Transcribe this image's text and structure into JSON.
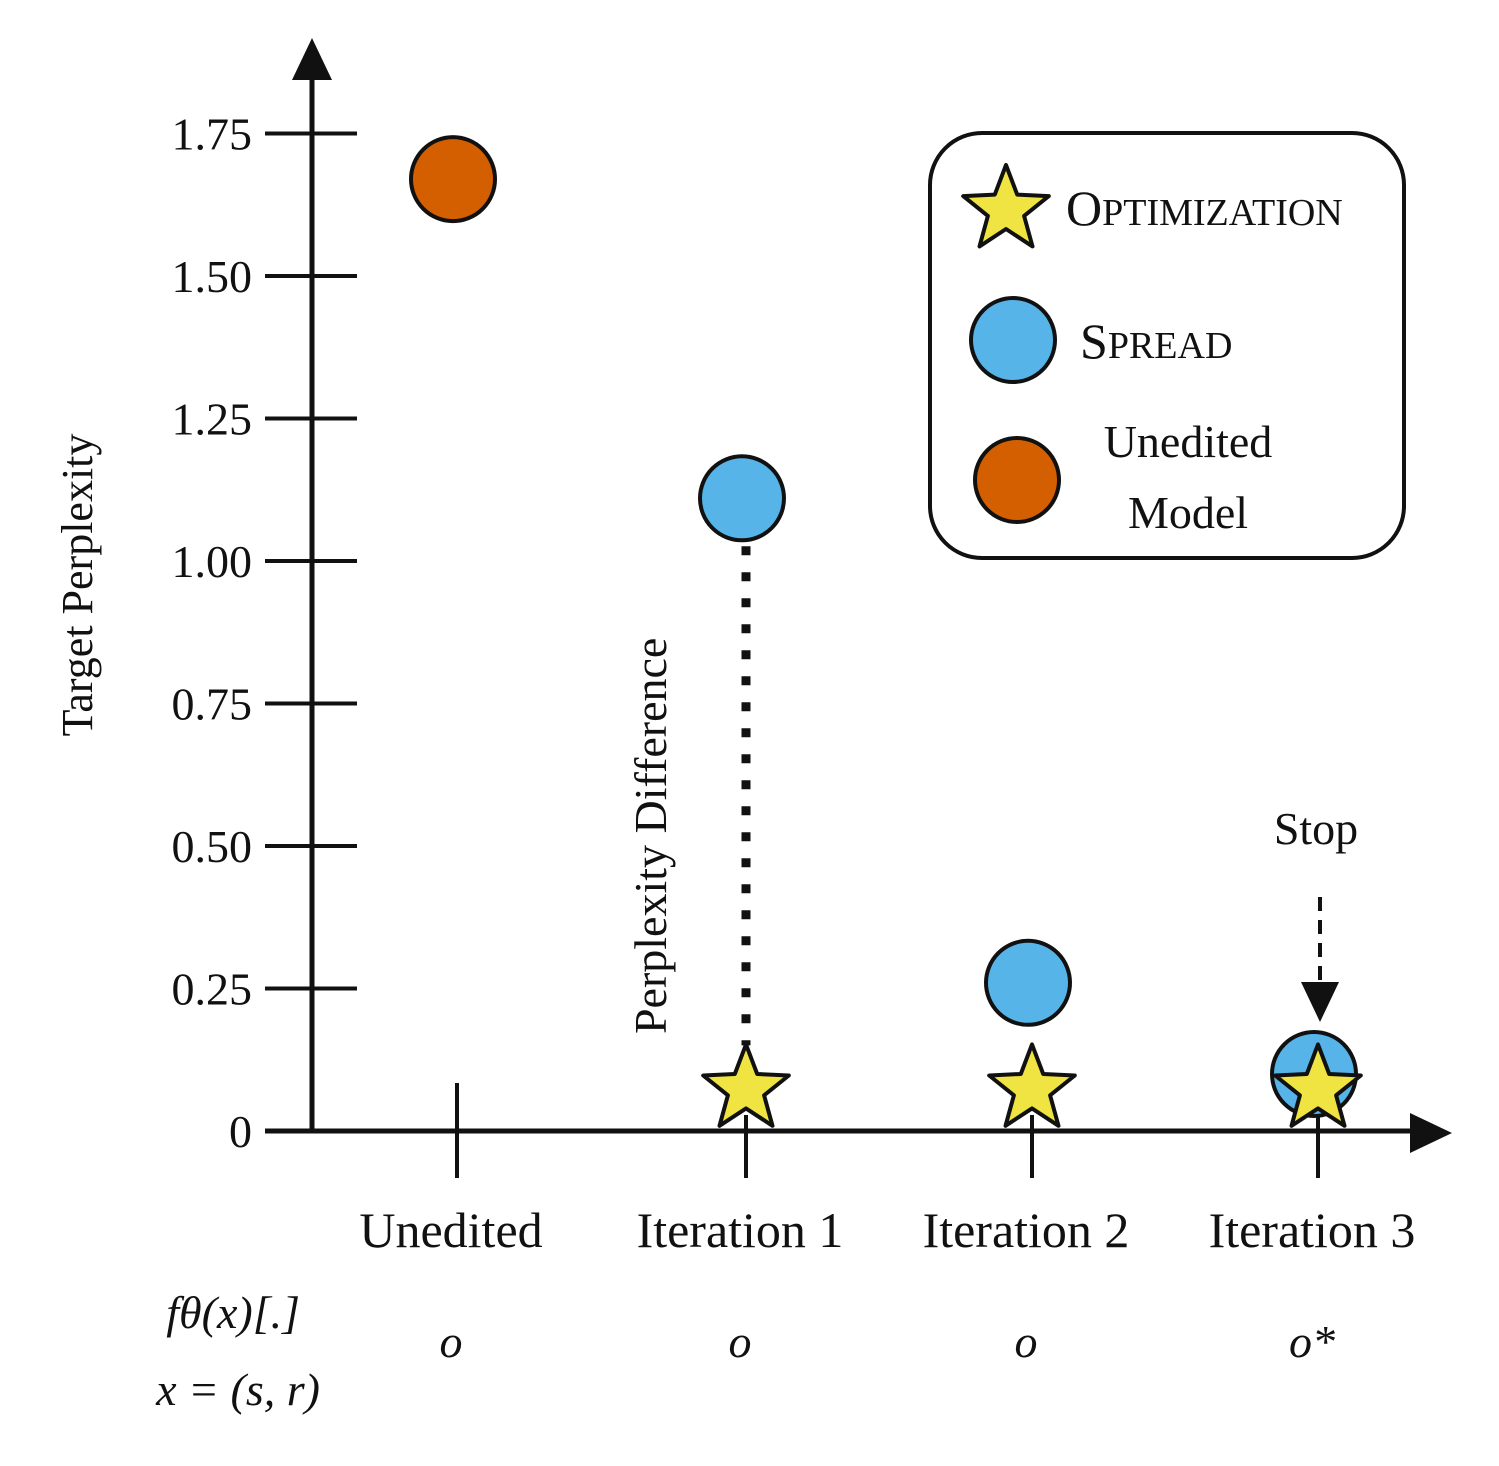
{
  "chart_data": {
    "type": "scatter",
    "title": "",
    "xlabel": "",
    "ylabel": "Target Perplexity",
    "ylim": [
      0,
      1.85
    ],
    "yticks": [
      "0",
      "0.25",
      "0.50",
      "0.75",
      "1.00",
      "1.25",
      "1.50",
      "1.75"
    ],
    "ytick_values": [
      0,
      0.25,
      0.5,
      0.75,
      1.0,
      1.25,
      1.5,
      1.75
    ],
    "categories": [
      "Unedited",
      "Iteration 1",
      "Iteration 2",
      "Iteration 3"
    ],
    "series": [
      {
        "name": "Unedited Model",
        "marker": "circle",
        "color": "#d35f00",
        "values": [
          1.67,
          null,
          null,
          null
        ]
      },
      {
        "name": "SPREAD",
        "marker": "circle",
        "color": "#56b4e9",
        "values": [
          null,
          1.11,
          0.26,
          0.1
        ]
      },
      {
        "name": "OPTIMIZATION",
        "marker": "star",
        "color": "#f0e442",
        "values": [
          null,
          0.08,
          0.08,
          0.08
        ]
      }
    ],
    "legend": {
      "position": "top-right",
      "entries": [
        {
          "label_first": "O",
          "label_rest": "PTIMIZATION",
          "marker": "star"
        },
        {
          "label_first": "S",
          "label_rest": "PREAD",
          "marker": "circle"
        },
        {
          "label_line1": "Unedited",
          "label_line2": "Model",
          "marker": "circle"
        }
      ]
    },
    "annotations": {
      "perplexity_difference": "Perplexity Difference",
      "stop": "Stop"
    },
    "math_rows": {
      "row1_label": "fθ(x)[.]",
      "row2_label": "x = (s, r)",
      "outputs": [
        "o",
        "o",
        "o",
        "o*"
      ]
    }
  }
}
